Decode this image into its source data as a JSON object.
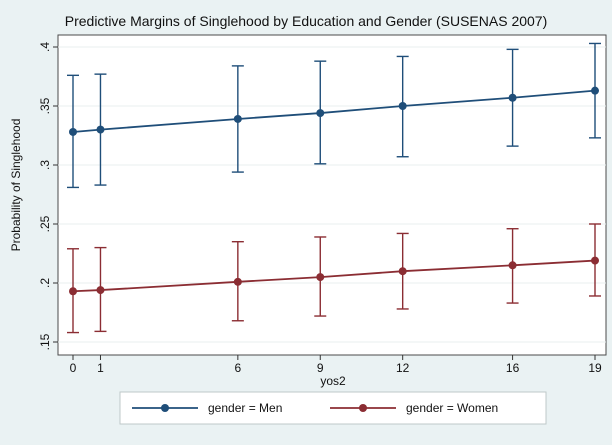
{
  "chart_data": {
    "type": "line",
    "title": "Predictive Margins of Singlehood by Education and Gender (SUSENAS 2007)",
    "xlabel": "yos2",
    "ylabel": "Probability of Singlehood",
    "x_ticks": [
      0,
      1,
      6,
      9,
      12,
      16,
      19
    ],
    "y_ticks": [
      ".15",
      ".2",
      ".25",
      ".3",
      ".35",
      ".4"
    ],
    "xlim": [
      0,
      19
    ],
    "ylim": [
      0.15,
      0.4
    ],
    "grid": true,
    "legend_position": "bottom",
    "series": [
      {
        "name": "gender = Men",
        "color": "#1f4e79",
        "x": [
          0,
          1,
          6,
          9,
          12,
          16,
          19
        ],
        "y": [
          0.328,
          0.33,
          0.339,
          0.344,
          0.35,
          0.357,
          0.363
        ],
        "ci_low": [
          0.281,
          0.283,
          0.294,
          0.301,
          0.307,
          0.316,
          0.323
        ],
        "ci_high": [
          0.376,
          0.377,
          0.384,
          0.388,
          0.392,
          0.398,
          0.403
        ]
      },
      {
        "name": "gender = Women",
        "color": "#8b2d33",
        "x": [
          0,
          1,
          6,
          9,
          12,
          16,
          19
        ],
        "y": [
          0.193,
          0.194,
          0.201,
          0.205,
          0.21,
          0.215,
          0.219
        ],
        "ci_low": [
          0.158,
          0.159,
          0.168,
          0.172,
          0.178,
          0.183,
          0.189
        ],
        "ci_high": [
          0.229,
          0.23,
          0.235,
          0.239,
          0.242,
          0.246,
          0.25
        ]
      }
    ]
  }
}
